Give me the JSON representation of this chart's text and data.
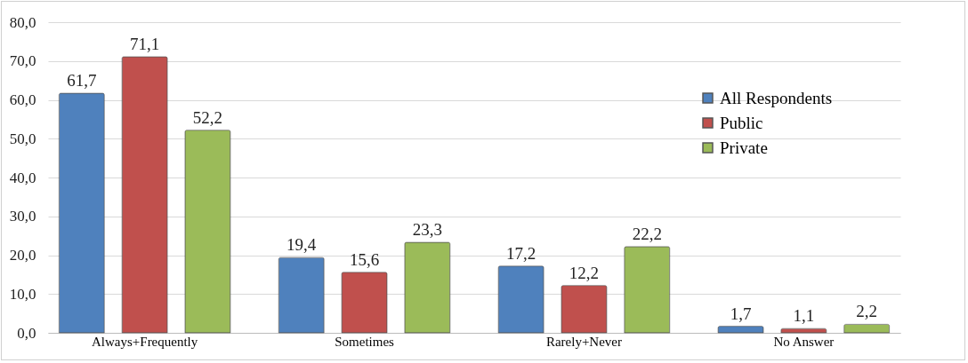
{
  "chart_data": {
    "type": "bar",
    "categories": [
      "Always+Frequently",
      "Sometimes",
      "Rarely+Never",
      "No Answer"
    ],
    "series": [
      {
        "name": "All Respondents",
        "color": "#4f81bd",
        "values": [
          61.7,
          19.4,
          17.2,
          1.7
        ],
        "value_labels": [
          "61,7",
          "19,4",
          "17,2",
          "1,7"
        ]
      },
      {
        "name": "Public",
        "color": "#c0504d",
        "values": [
          71.1,
          15.6,
          12.2,
          1.1
        ],
        "value_labels": [
          "71,1",
          "15,6",
          "12,2",
          "1,1"
        ]
      },
      {
        "name": "Private",
        "color": "#9bbb59",
        "values": [
          52.2,
          23.3,
          22.2,
          2.2
        ],
        "value_labels": [
          "52,2",
          "23,3",
          "22,2",
          "2,2"
        ]
      }
    ],
    "ylim": [
      0,
      80
    ],
    "yticks": [
      {
        "value": 0,
        "label": "0,0"
      },
      {
        "value": 10,
        "label": "10,0"
      },
      {
        "value": 20,
        "label": "20,0"
      },
      {
        "value": 30,
        "label": "30,0"
      },
      {
        "value": 40,
        "label": "40,0"
      },
      {
        "value": 50,
        "label": "50,0"
      },
      {
        "value": 60,
        "label": "60,0"
      },
      {
        "value": 70,
        "label": "70,0"
      },
      {
        "value": 80,
        "label": "80,0"
      }
    ],
    "grid": "y",
    "legend": "top right"
  }
}
